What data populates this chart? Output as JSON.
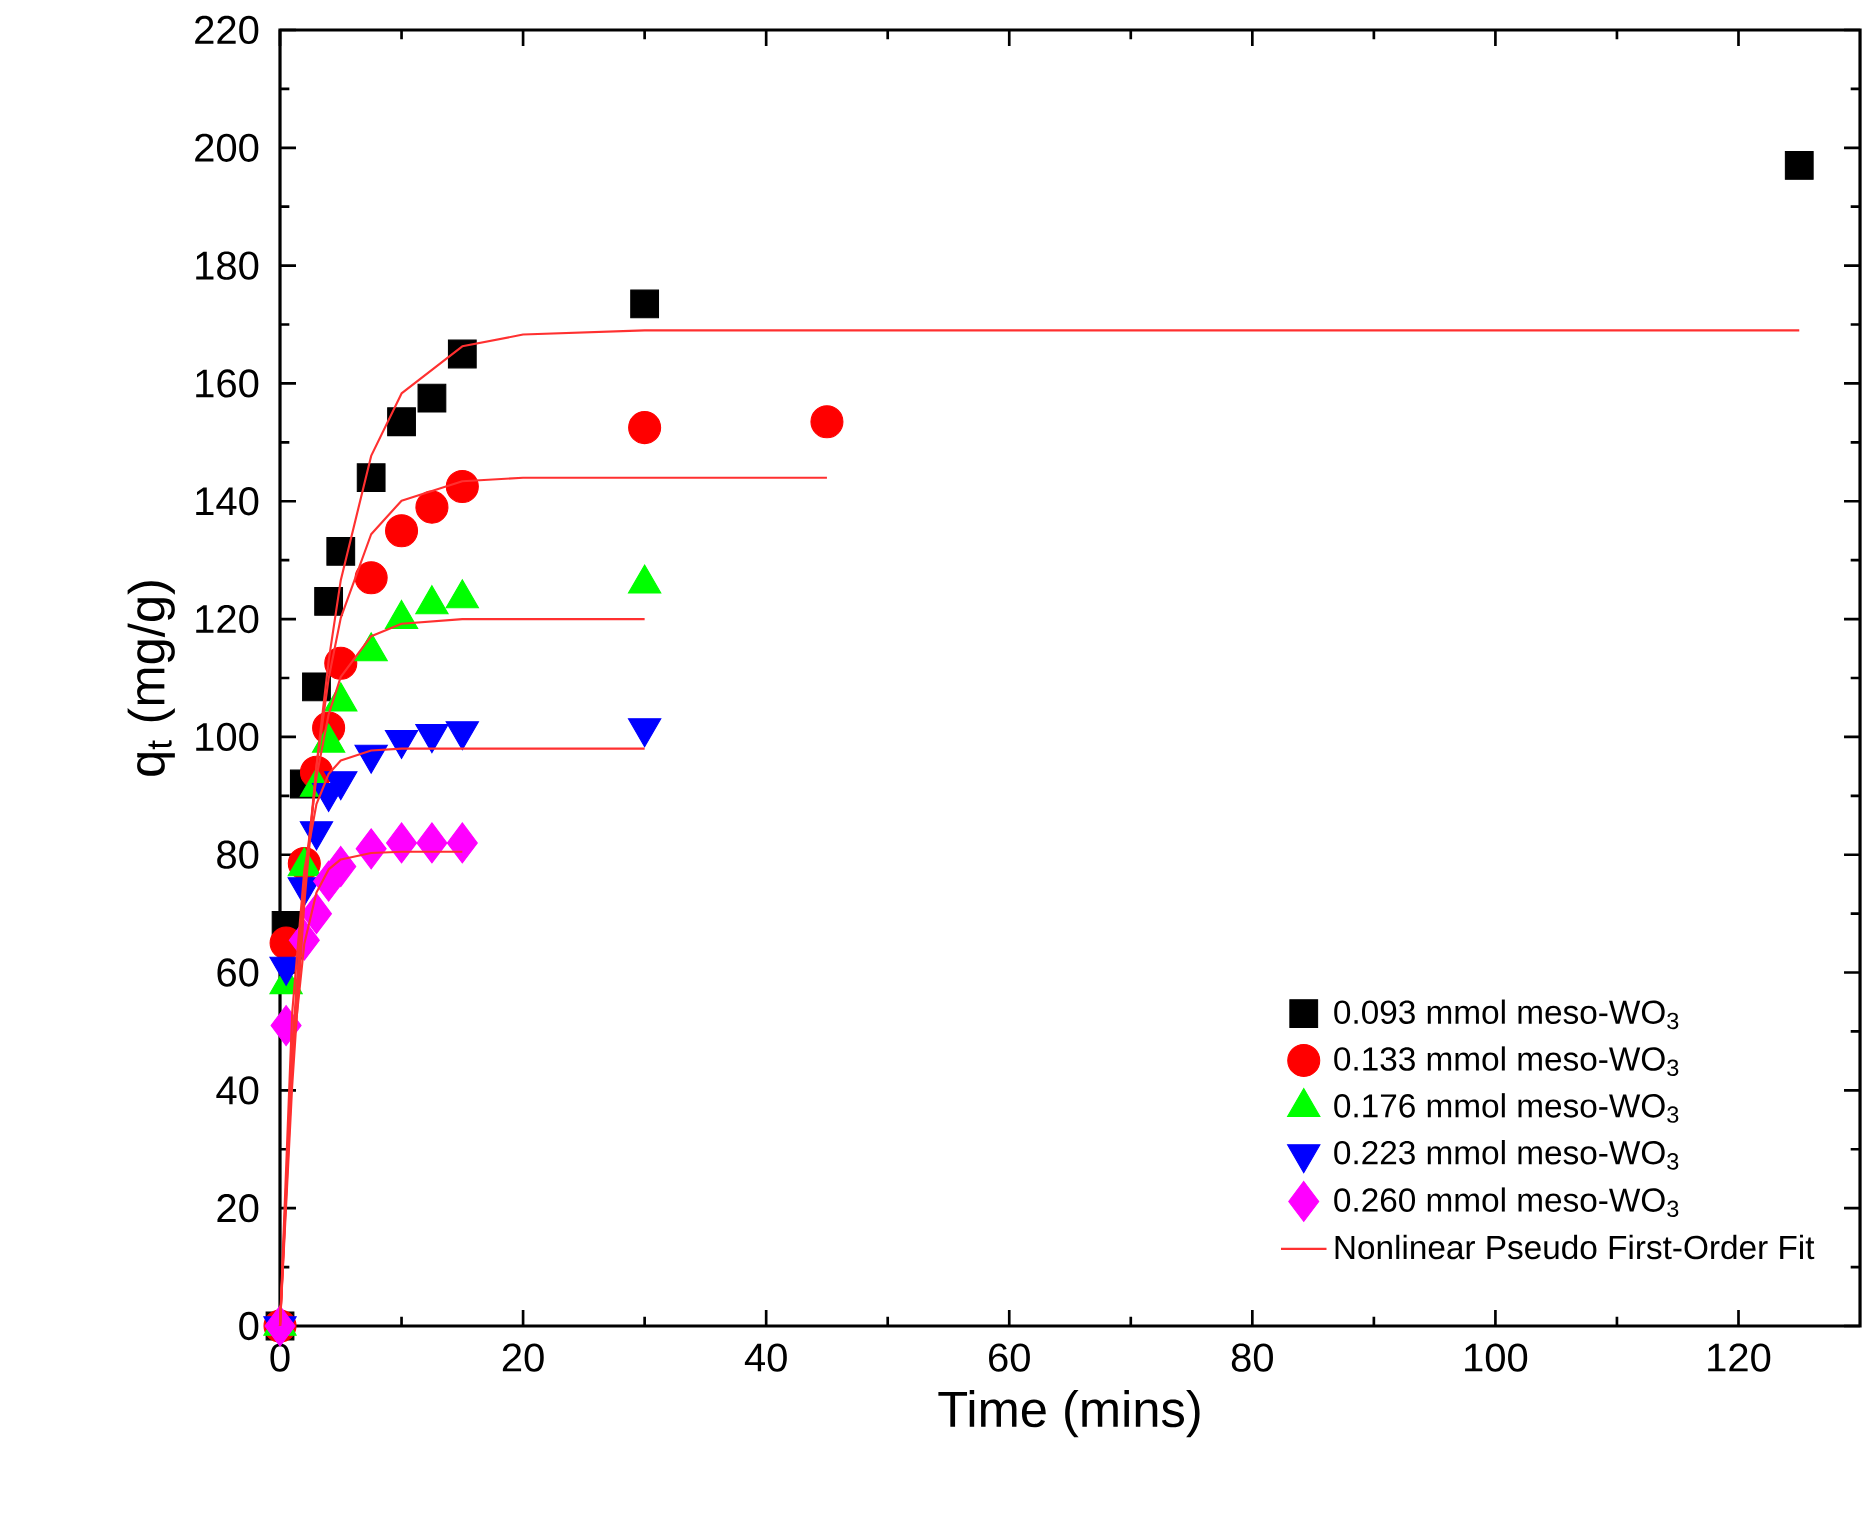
{
  "chart_data": {
    "type": "scatter",
    "xlabel": "Time (mins)",
    "ylabel": "q$_{t}$ (mg/g)",
    "xlim": [
      0,
      130
    ],
    "ylim": [
      0,
      220
    ],
    "xticks": [
      0,
      20,
      40,
      60,
      80,
      100,
      120
    ],
    "yticks": [
      0,
      20,
      40,
      60,
      80,
      100,
      120,
      140,
      160,
      180,
      200,
      220
    ],
    "grid": false,
    "legend": "bottom right",
    "series": [
      {
        "name": "0.093 mmol meso-WO$_{3}$",
        "type": "scatter",
        "marker": "square",
        "color": "#000000",
        "x": [
          0,
          0.5,
          2,
          3,
          4,
          5,
          7.5,
          10,
          12.5,
          15,
          30,
          125
        ],
        "values": [
          0,
          68,
          92,
          108.5,
          123,
          131.5,
          144,
          153.5,
          157.5,
          165,
          173.5,
          197
        ]
      },
      {
        "name": "0.133 mmol meso-WO$_{3}$",
        "type": "scatter",
        "marker": "circle",
        "color": "#ff0000",
        "x": [
          0,
          0.5,
          2,
          3,
          4,
          5,
          7.5,
          10,
          12.5,
          15,
          30,
          45
        ],
        "values": [
          0,
          65,
          78.5,
          94,
          101.5,
          112.5,
          127,
          135,
          139,
          142.5,
          152.5,
          153.5
        ]
      },
      {
        "name": "0.176 mmol meso-WO$_{3}$",
        "type": "scatter",
        "marker": "triangle",
        "color": "#00ff00",
        "x": [
          0,
          0.5,
          2,
          3,
          4,
          5,
          7.5,
          10,
          12.5,
          15,
          30
        ],
        "values": [
          0,
          58,
          78,
          91.5,
          99,
          106,
          114.5,
          120,
          122.5,
          123.5,
          126
        ]
      },
      {
        "name": "0.223 mmol meso-WO$_{3}$",
        "type": "scatter",
        "marker": "triangle-down",
        "color": "#0000ff",
        "x": [
          0,
          0.5,
          2,
          3,
          4,
          5,
          7.5,
          10,
          12.5,
          15,
          30
        ],
        "values": [
          0,
          61,
          74.5,
          84,
          90.5,
          92.5,
          97,
          99.5,
          100.5,
          101,
          101.5
        ]
      },
      {
        "name": "0.260 mmol meso-WO$_{3}$",
        "type": "scatter",
        "marker": "diamond",
        "color": "#ff00ff",
        "x": [
          0,
          0.5,
          2,
          3,
          4,
          5,
          7.5,
          10,
          12.5,
          15
        ],
        "values": [
          0,
          51,
          65.5,
          70,
          75.5,
          78,
          81,
          82,
          82,
          82
        ]
      },
      {
        "type": "line",
        "marker": "none",
        "color": "#ff3030",
        "x": [
          0,
          1,
          2,
          3,
          4,
          5,
          7.5,
          10,
          15,
          20,
          30,
          125
        ],
        "values": [
          0,
          40.7,
          71.7,
          95.1,
          112.9,
          126.6,
          147.7,
          158.3,
          166.3,
          168.3,
          169,
          169
        ]
      },
      {
        "type": "line",
        "marker": "none",
        "color": "#ff3030",
        "x": [
          0,
          1,
          2,
          3,
          4,
          5,
          7.5,
          10,
          15,
          20,
          45
        ],
        "values": [
          0,
          43.5,
          73.9,
          95,
          109.9,
          120.2,
          134.4,
          140.1,
          143.4,
          144,
          144
        ]
      },
      {
        "type": "line",
        "marker": "none",
        "color": "#ff3030",
        "x": [
          0,
          1,
          2,
          3,
          4,
          5,
          7.5,
          10,
          15,
          30
        ],
        "values": [
          0,
          47.2,
          75.9,
          93.2,
          103.8,
          110.2,
          117.1,
          119.2,
          120,
          120
        ]
      },
      {
        "type": "line",
        "marker": "none",
        "color": "#ff3030",
        "x": [
          0,
          1,
          2,
          3,
          4,
          5,
          7.5,
          10,
          30
        ],
        "values": [
          0,
          53.1,
          77.4,
          88.6,
          93.7,
          96,
          97.7,
          98,
          98
        ]
      },
      {
        "name": "Nonlinear Pseudo First-Order Fit",
        "type": "line",
        "marker": "none",
        "color": "#ff3030",
        "x": [
          0,
          1,
          2,
          3,
          4,
          5,
          7.5,
          10,
          15
        ],
        "values": [
          0,
          45.1,
          64.9,
          73.6,
          77.5,
          79.2,
          80.3,
          80.5,
          80.5
        ]
      }
    ]
  }
}
